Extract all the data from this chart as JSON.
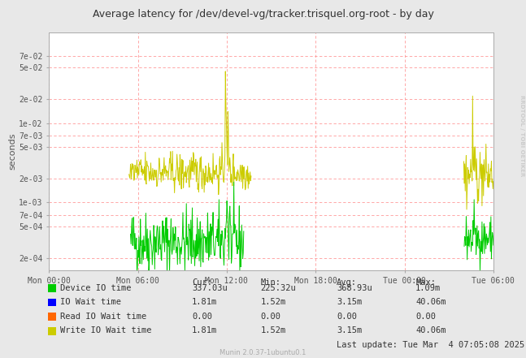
{
  "title": "Average latency for /dev/devel-vg/tracker.trisquel.org-root - by day",
  "ylabel": "seconds",
  "background_color": "#e8e8e8",
  "plot_bg_color": "#ffffff",
  "right_label": "RRDTOOL / TOBI OETIKER",
  "bottom_label": "Munin 2.0.37-1ubuntu0.1",
  "last_update": "Last update: Tue Mar  4 07:05:08 2025",
  "xtick_labels": [
    "Mon 00:00",
    "Mon 06:00",
    "Mon 12:00",
    "Mon 18:00",
    "Tue 00:00",
    "Tue 06:00"
  ],
  "ytick_labels": [
    "2e-04",
    "5e-04",
    "7e-04",
    "1e-03",
    "2e-03",
    "5e-03",
    "7e-03",
    "1e-02",
    "2e-02",
    "5e-02",
    "7e-02"
  ],
  "ytick_values": [
    0.0002,
    0.0005,
    0.0007,
    0.001,
    0.002,
    0.005,
    0.007,
    0.01,
    0.02,
    0.05,
    0.07
  ],
  "ymin": 0.00014,
  "ymax": 0.14,
  "legend_entries": [
    {
      "label": "Device IO time",
      "color": "#00cc00"
    },
    {
      "label": "IO Wait time",
      "color": "#0000ff"
    },
    {
      "label": "Read IO Wait time",
      "color": "#ff6600"
    },
    {
      "label": "Write IO Wait time",
      "color": "#cccc00"
    }
  ],
  "legend_cur": [
    "337.03u",
    "1.81m",
    "0.00",
    "1.81m"
  ],
  "legend_min": [
    "225.32u",
    "1.52m",
    "0.00",
    "1.52m"
  ],
  "legend_avg": [
    "368.93u",
    "3.15m",
    "0.00",
    "3.15m"
  ],
  "legend_max": [
    "1.09m",
    "40.06m",
    "0.00",
    "40.06m"
  ],
  "green_color": "#00cc00",
  "yellow_color": "#cccc00",
  "blue_color": "#0000ff",
  "orange_color": "#ff6600"
}
